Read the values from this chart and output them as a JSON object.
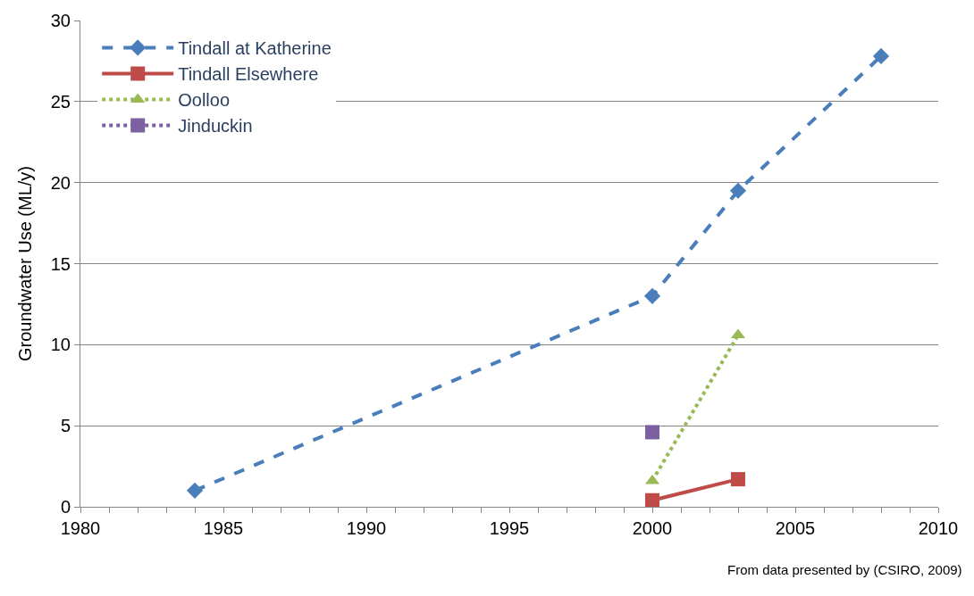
{
  "chart_data": {
    "type": "line",
    "ylabel": "Groundwater Use (ML/y)",
    "xlim": [
      1980,
      2010
    ],
    "xticks": [
      1980,
      1985,
      1990,
      1995,
      2000,
      2005,
      2010
    ],
    "ylim": [
      0,
      30
    ],
    "yticks": [
      0,
      5,
      10,
      15,
      20,
      25,
      30
    ],
    "grid": "y",
    "legend": "top left",
    "series": [
      {
        "name": "Tindall at Katherine",
        "color": "#4a7ebb",
        "marker": "diamond",
        "line_style": "dashed",
        "x": [
          1984,
          2000,
          2003,
          2008
        ],
        "values": [
          1.0,
          13.0,
          19.5,
          27.8
        ]
      },
      {
        "name": "Tindall Elsewhere",
        "color": "#be4b48",
        "marker": "square",
        "line_style": "solid",
        "x": [
          2000,
          2003
        ],
        "values": [
          0.4,
          1.7
        ]
      },
      {
        "name": "Oolloo",
        "color": "#98b954",
        "marker": "triangle",
        "line_style": "dotted",
        "x": [
          2000,
          2003
        ],
        "values": [
          1.6,
          10.6
        ]
      },
      {
        "name": "Jinduckin",
        "color": "#7d60a0",
        "marker": "square",
        "line_style": "dotted",
        "x": [
          2000
        ],
        "values": [
          4.6
        ]
      }
    ],
    "annotations": [
      "From data presented by (CSIRO, 2009)"
    ]
  }
}
